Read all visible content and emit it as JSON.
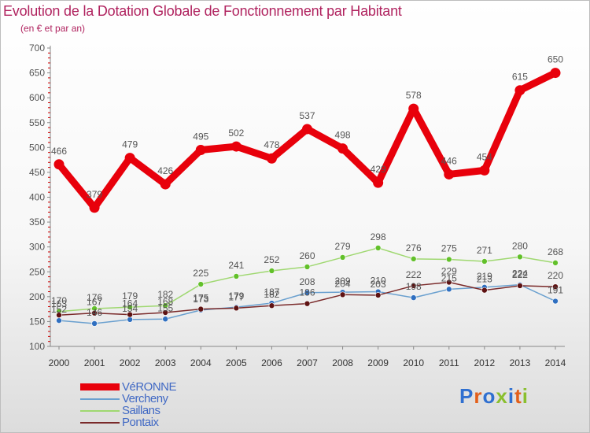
{
  "title": "Evolution de la Dotation Globale de Fonctionnement par Habitant",
  "subtitle": "(en € et par an)",
  "logo": {
    "text": "Proxiti",
    "letters": [
      {
        "ch": "P",
        "color": "#2f6fd0"
      },
      {
        "ch": "r",
        "color": "#e35f1a"
      },
      {
        "ch": "o",
        "color": "#2f6fd0"
      },
      {
        "ch": "x",
        "color": "#8abf2e"
      },
      {
        "ch": "i",
        "color": "#2f6fd0"
      },
      {
        "ch": "t",
        "color": "#e35f1a"
      },
      {
        "ch": "i",
        "color": "#8abf2e"
      }
    ]
  },
  "colors": {
    "title": "#b0235f",
    "axis": "#888888",
    "tick_marks": "#cc0000",
    "label": "#555555",
    "legend_text": "#4169c4"
  },
  "chart_data": {
    "type": "line",
    "title": "Evolution de la Dotation Globale de Fonctionnement par Habitant",
    "subtitle": "(en € et par an)",
    "xlabel": "",
    "ylabel": "",
    "x": [
      "2000",
      "2001",
      "2002",
      "2003",
      "2004",
      "2005",
      "2006",
      "2007",
      "2008",
      "2009",
      "2010",
      "2011",
      "2012",
      "2013",
      "2014"
    ],
    "ylim": [
      100,
      700
    ],
    "yticks": [
      100,
      150,
      200,
      250,
      300,
      350,
      400,
      450,
      500,
      550,
      600,
      650,
      700
    ],
    "grid": false,
    "legend_position": "bottom-left",
    "series": [
      {
        "name": "VéRONNE",
        "color": "#e8000b",
        "marker": "#e8000b",
        "width": 9,
        "r": 6.5,
        "values": [
          466,
          379,
          479,
          426,
          495,
          502,
          478,
          537,
          498,
          429,
          578,
          446,
          454,
          615,
          650
        ],
        "labels": [
          "466",
          "379",
          "479",
          "426",
          "495",
          "502",
          "478",
          "537",
          "498",
          "429",
          "578",
          "446",
          "454",
          "615",
          "650"
        ]
      },
      {
        "name": "Vercheny",
        "color": "#6aa0cf",
        "marker": "#2f6fc0",
        "width": 1.5,
        "r": 3.5,
        "values": [
          152,
          146,
          154,
          155,
          173,
          179,
          187,
          208,
          209,
          210,
          198,
          215,
          219,
          224,
          191
        ],
        "labels": [
          "152",
          "146",
          "154",
          "155",
          "173",
          "179",
          "187",
          "208",
          "209",
          "210",
          "198",
          "215",
          "219",
          "224",
          "191"
        ]
      },
      {
        "name": "Saillans",
        "color": "#9fd870",
        "marker": "#62c02a",
        "width": 1.5,
        "r": 3.5,
        "values": [
          170,
          176,
          179,
          182,
          225,
          241,
          252,
          260,
          279,
          298,
          276,
          275,
          271,
          280,
          268
        ],
        "labels": [
          "170",
          "176",
          "179",
          "182",
          "225",
          "241",
          "252",
          "260",
          "279",
          "298",
          "276",
          "275",
          "271",
          "280",
          "268"
        ]
      },
      {
        "name": "Pontaix",
        "color": "#7a2a2a",
        "marker": "#5e1212",
        "width": 1.5,
        "r": 3.5,
        "values": [
          163,
          167,
          164,
          168,
          175,
          177,
          182,
          186,
          204,
          203,
          222,
          229,
          213,
          222,
          220
        ],
        "labels": [
          "163",
          "167",
          "164",
          "168",
          "175",
          "177",
          "182",
          "186",
          "204",
          "203",
          "222",
          "229",
          "213",
          "222",
          "220"
        ]
      }
    ]
  }
}
